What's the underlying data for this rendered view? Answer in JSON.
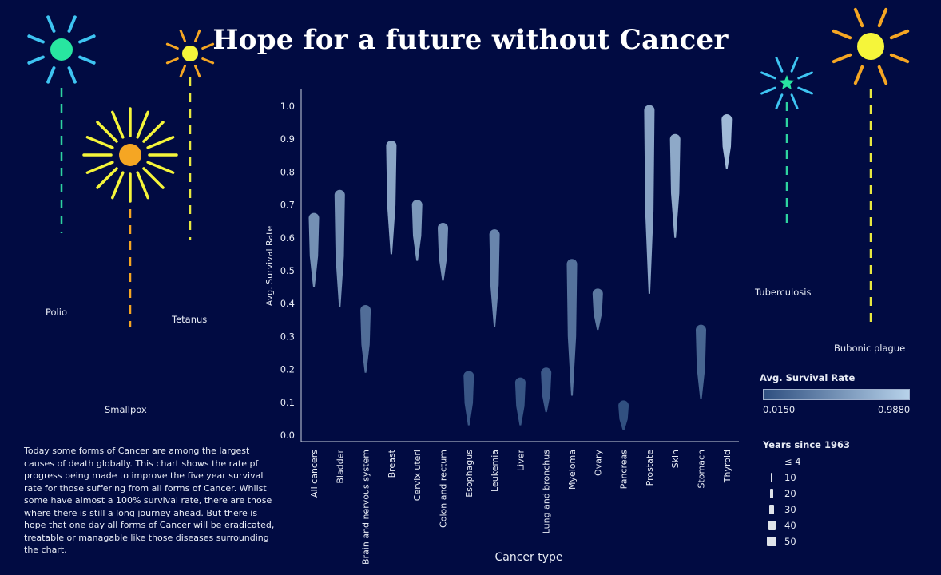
{
  "title": "Hope for a future without Cancer",
  "diseases": [
    {
      "name": "Polio",
      "color": "#28e6a0",
      "ray_color": "#3ec4f2",
      "stem_color": "#2ed4a0"
    },
    {
      "name": "Tetanus",
      "color": "#f5f53a",
      "ray_color": "#f5a623",
      "stem_color": "#e8e840"
    },
    {
      "name": "Smallpox",
      "color": "#f5a623",
      "ray_color": "#f5f53a",
      "stem_color": "#f5a623"
    },
    {
      "name": "Tuberculosis",
      "color": "#28e6a0",
      "ray_color": "#3ec4f2",
      "stem_color": "#2ed4a0"
    },
    {
      "name": "Bubonic plague",
      "color": "#f5f53a",
      "ray_color": "#f5a623",
      "stem_color": "#e8e840"
    }
  ],
  "description": "Today some forms of Cancer are among the largest causes of death globally. This chart shows the rate pf progress being made to improve the five year survival rate for those suffering from all forms of Cancer. Whilst some have almost a 100% survival rate, there are those where there is still a long journey ahead. But there is hope that one day all forms of Cancer will be eradicated, treatable or managable like those diseases surrounding the chart.",
  "chart_data": {
    "type": "area",
    "xlabel": "Cancer type",
    "ylabel": "Avg. Survival Rate",
    "ylim": [
      0,
      1.0
    ],
    "yticks": [
      "0.0",
      "0.1",
      "0.2",
      "0.3",
      "0.4",
      "0.5",
      "0.6",
      "0.7",
      "0.8",
      "0.9",
      "1.0"
    ],
    "categories": [
      "All cancers",
      "Bladder",
      "Brain and nervous system",
      "Breast",
      "Cervix uteri",
      "Colon and rectum",
      "Esophagus",
      "Leukemia",
      "Liver",
      "Lung and bronchus",
      "Myeloma",
      "Ovary",
      "Pancreas",
      "Prostate",
      "Skin",
      "Stomach",
      "Thyroid"
    ],
    "series": [
      {
        "category": "All cancers",
        "min": 0.45,
        "max": 0.66
      },
      {
        "category": "Bladder",
        "min": 0.39,
        "max": 0.73
      },
      {
        "category": "Brain and nervous system",
        "min": 0.19,
        "max": 0.38
      },
      {
        "category": "Breast",
        "min": 0.55,
        "max": 0.88
      },
      {
        "category": "Cervix uteri",
        "min": 0.53,
        "max": 0.7
      },
      {
        "category": "Colon and rectum",
        "min": 0.47,
        "max": 0.63
      },
      {
        "category": "Esophagus",
        "min": 0.03,
        "max": 0.18
      },
      {
        "category": "Leukemia",
        "min": 0.33,
        "max": 0.61
      },
      {
        "category": "Liver",
        "min": 0.03,
        "max": 0.16
      },
      {
        "category": "Lung and bronchus",
        "min": 0.07,
        "max": 0.19
      },
      {
        "category": "Myeloma",
        "min": 0.12,
        "max": 0.52
      },
      {
        "category": "Ovary",
        "min": 0.32,
        "max": 0.43
      },
      {
        "category": "Pancreas",
        "min": 0.015,
        "max": 0.09
      },
      {
        "category": "Prostate",
        "min": 0.43,
        "max": 0.988
      },
      {
        "category": "Skin",
        "min": 0.6,
        "max": 0.9
      },
      {
        "category": "Stomach",
        "min": 0.11,
        "max": 0.32
      },
      {
        "category": "Thyroid",
        "min": 0.81,
        "max": 0.96
      }
    ],
    "color_legend": {
      "title": "Avg. Survival Rate",
      "min_label": "0.0150",
      "max_label": "0.9880",
      "min_color": "#2f4f80",
      "max_color": "#b7d2ea"
    },
    "size_legend": {
      "title": "Years since 1963",
      "items": [
        "≤ 4",
        "10",
        "20",
        "30",
        "40",
        "50"
      ]
    }
  }
}
